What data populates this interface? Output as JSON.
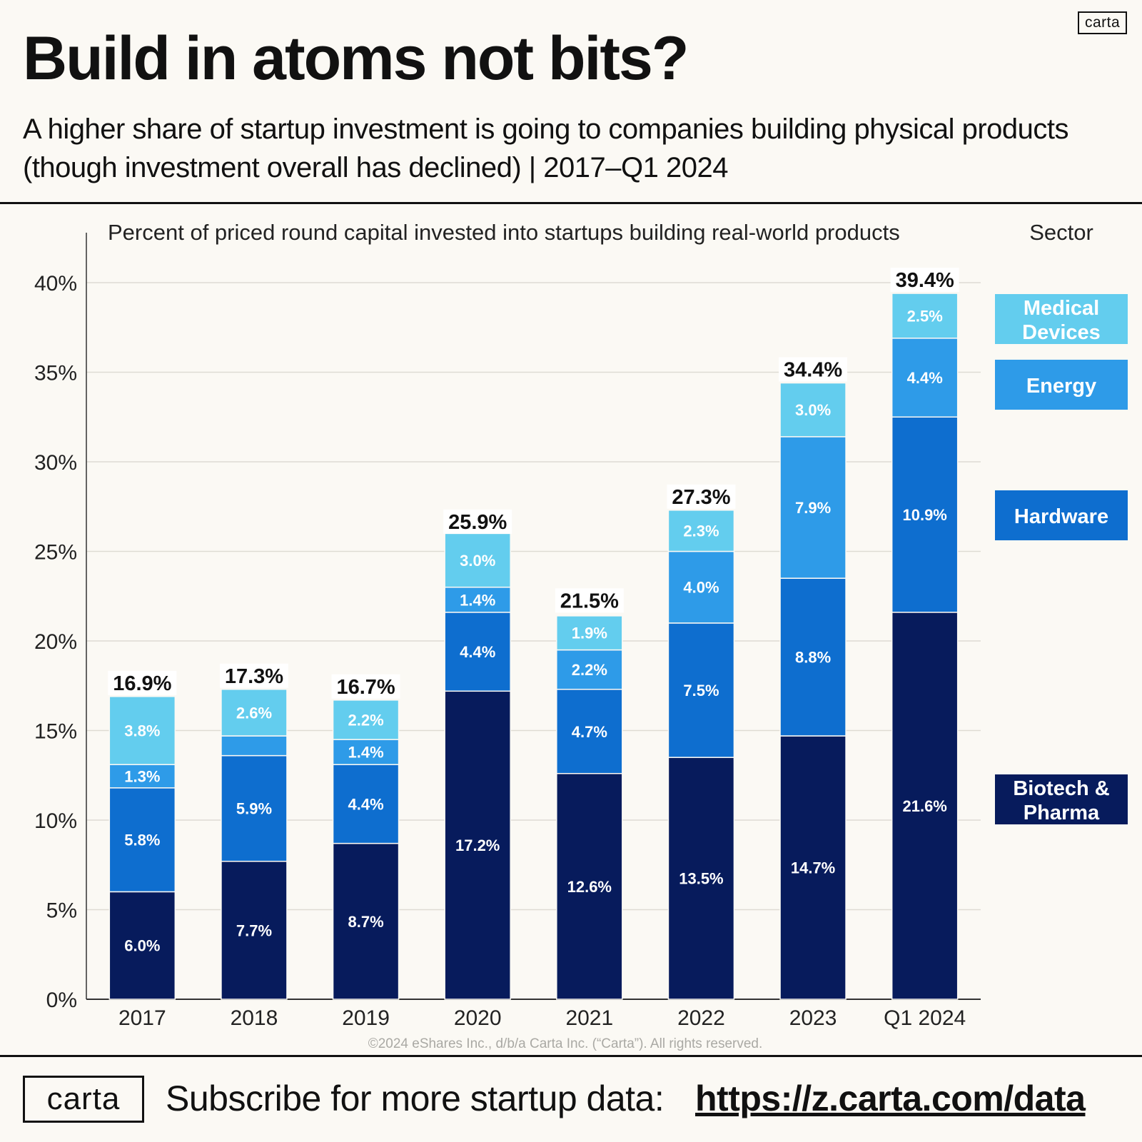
{
  "header": {
    "logo": "carta",
    "title": "Build in atoms not bits?",
    "subtitle": "A higher share of startup investment is going to companies building physical products (though investment overall has declined) | 2017–Q1 2024"
  },
  "footer": {
    "copyright": "©2024 eShares Inc., d/b/a Carta Inc. (“Carta”). All rights reserved.",
    "logo": "carta",
    "cta": "Subscribe for more startup data:",
    "link": "https://z.carta.com/data"
  },
  "chart_data": {
    "type": "bar",
    "stacked": true,
    "title": "",
    "chart_label": "Percent of priced round capital invested into startups building real-world products",
    "legend_title": "Sector",
    "legend_position": "right",
    "xlabel": "",
    "ylabel": "",
    "categories": [
      "2017",
      "2018",
      "2019",
      "2020",
      "2021",
      "2022",
      "2023",
      "Q1 2024"
    ],
    "ylim": [
      0,
      40
    ],
    "yticks": [
      0,
      5,
      10,
      15,
      20,
      25,
      30,
      35,
      40
    ],
    "ytick_labels": [
      "0%",
      "5%",
      "10%",
      "15%",
      "20%",
      "25%",
      "30%",
      "35%",
      "40%"
    ],
    "grid": true,
    "series": [
      {
        "name": "Biotech & Pharma",
        "color": "#071b5c",
        "values": [
          6.0,
          7.7,
          8.7,
          17.2,
          12.6,
          13.5,
          14.7,
          21.6
        ],
        "labels": [
          "6.0%",
          "7.7%",
          "8.7%",
          "17.2%",
          "12.6%",
          "13.5%",
          "14.7%",
          "21.6%"
        ]
      },
      {
        "name": "Hardware",
        "color": "#0e6ecf",
        "values": [
          5.8,
          5.9,
          4.4,
          4.4,
          4.7,
          7.5,
          8.8,
          10.9
        ],
        "labels": [
          "5.8%",
          "5.9%",
          "4.4%",
          "4.4%",
          "4.7%",
          "7.5%",
          "8.8%",
          "10.9%"
        ]
      },
      {
        "name": "Energy",
        "color": "#2e9be8",
        "values": [
          1.3,
          1.1,
          1.4,
          1.4,
          2.2,
          4.0,
          7.9,
          4.4
        ],
        "labels": [
          "1.3%",
          "",
          "1.4%",
          "1.4%",
          "2.2%",
          "4.0%",
          "7.9%",
          "4.4%"
        ]
      },
      {
        "name": "Medical Devices",
        "color": "#63cdee",
        "values": [
          3.8,
          2.6,
          2.2,
          3.0,
          1.9,
          2.3,
          3.0,
          2.5
        ],
        "labels": [
          "3.8%",
          "2.6%",
          "2.2%",
          "3.0%",
          "1.9%",
          "2.3%",
          "3.0%",
          "2.5%"
        ]
      }
    ],
    "totals": [
      16.9,
      17.3,
      16.7,
      25.9,
      21.5,
      27.3,
      34.4,
      39.4
    ],
    "total_labels": [
      "16.9%",
      "17.3%",
      "16.7%",
      "25.9%",
      "21.5%",
      "27.3%",
      "34.4%",
      "39.4%"
    ],
    "legend": [
      {
        "lines": [
          "Medical",
          "Devices"
        ],
        "color": "#63cdee"
      },
      {
        "lines": [
          "Energy"
        ],
        "color": "#2e9be8"
      },
      {
        "lines": [
          "Hardware"
        ],
        "color": "#0e6ecf"
      },
      {
        "lines": [
          "Biotech &",
          "Pharma"
        ],
        "color": "#071b5c"
      }
    ]
  }
}
